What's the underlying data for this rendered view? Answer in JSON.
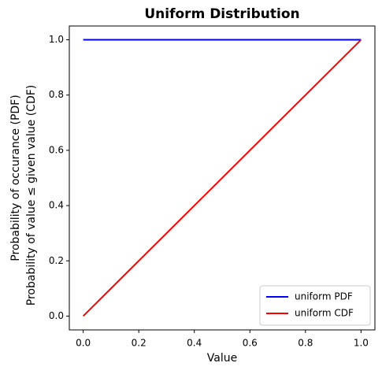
{
  "chart_data": {
    "type": "line",
    "title": "Uniform Distribution",
    "xlabel": "Value",
    "ylabel": [
      "Probability of occurance (PDF)",
      "Probability of value ≤ given value (CDF)"
    ],
    "x": [
      0,
      1
    ],
    "series": [
      {
        "name": "uniform PDF",
        "color": "#0000ff",
        "values": [
          1,
          1
        ]
      },
      {
        "name": "uniform CDF",
        "color": "#ff0000",
        "values": [
          0,
          1
        ]
      }
    ],
    "xlim": [
      -0.05,
      1.05
    ],
    "ylim": [
      -0.05,
      1.05
    ],
    "xticks": [
      {
        "value": 0,
        "label": "0.0"
      },
      {
        "value": 0.2,
        "label": "0.2"
      },
      {
        "value": 0.4,
        "label": "0.4"
      },
      {
        "value": 0.6,
        "label": "0.6"
      },
      {
        "value": 0.8,
        "label": "0.8"
      },
      {
        "value": 1,
        "label": "1.0"
      }
    ],
    "yticks": [
      {
        "value": 0,
        "label": "0.0"
      },
      {
        "value": 0.2,
        "label": "0.2"
      },
      {
        "value": 0.4,
        "label": "0.4"
      },
      {
        "value": 0.6,
        "label": "0.6"
      },
      {
        "value": 0.8,
        "label": "0.8"
      },
      {
        "value": 1,
        "label": "1.0"
      }
    ],
    "legend": "lower right",
    "grid": false
  }
}
